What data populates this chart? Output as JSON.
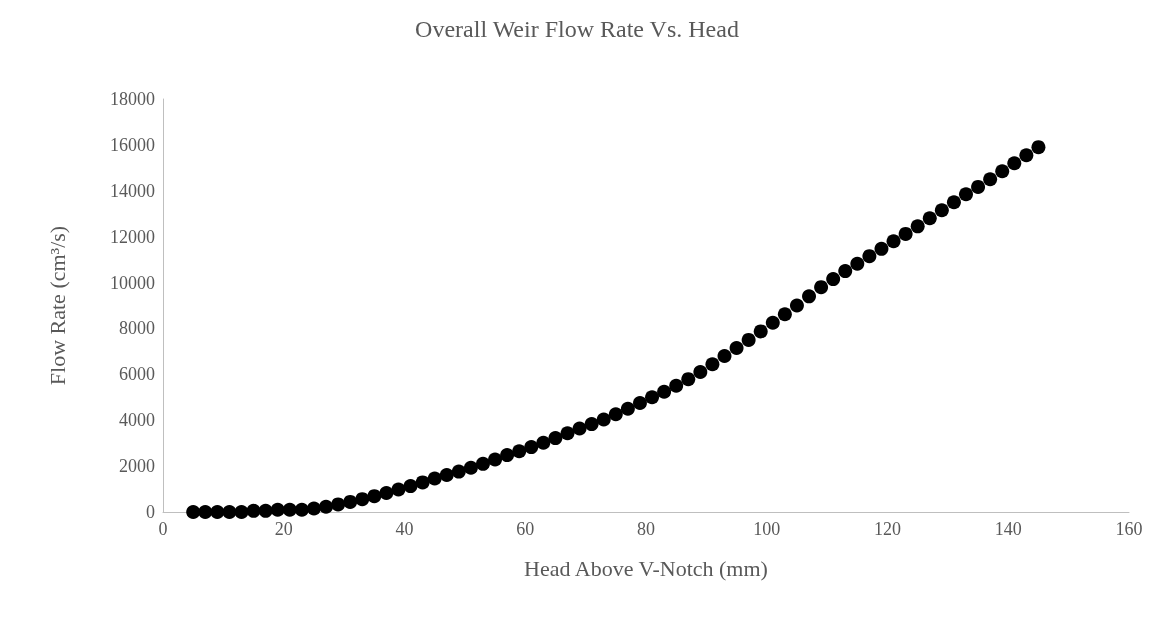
{
  "chart_data": {
    "type": "scatter",
    "title": "Overall Weir Flow Rate Vs. Head",
    "xlabel": "Head Above V-Notch (mm)",
    "ylabel": "Flow Rate (cm³/s)",
    "x": [
      5,
      7,
      9,
      11,
      13,
      15,
      17,
      19,
      21,
      23,
      25,
      27,
      29,
      31,
      33,
      35,
      37,
      39,
      41,
      43,
      45,
      47,
      49,
      51,
      53,
      55,
      57,
      59,
      61,
      63,
      65,
      67,
      69,
      71,
      73,
      75,
      77,
      79,
      81,
      83,
      85,
      87,
      89,
      91,
      93,
      95,
      97,
      99,
      101,
      103,
      105,
      107,
      109,
      111,
      113,
      115,
      117,
      119,
      121,
      123,
      125,
      127,
      129,
      131,
      133,
      135,
      137,
      139,
      141,
      143,
      145
    ],
    "series": [
      {
        "color": "#000000",
        "values": [
          0,
          0,
          0,
          0,
          0,
          50,
          50,
          100,
          100,
          100,
          150,
          230,
          330,
          440,
          560,
          690,
          830,
          980,
          1130,
          1290,
          1460,
          1610,
          1760,
          1930,
          2100,
          2290,
          2480,
          2650,
          2830,
          3020,
          3220,
          3430,
          3640,
          3830,
          4030,
          4260,
          4500,
          4750,
          5000,
          5240,
          5500,
          5790,
          6100,
          6440,
          6800,
          7150,
          7500,
          7870,
          8250,
          8620,
          9000,
          9400,
          9800,
          10150,
          10500,
          10820,
          11150,
          11470,
          11800,
          12120,
          12450,
          12800,
          13150,
          13500,
          13850,
          14170,
          14500,
          14850,
          15200,
          15550,
          15900
        ]
      }
    ],
    "xlim": [
      0,
      160
    ],
    "xticks": [
      0,
      20,
      40,
      60,
      80,
      100,
      120,
      140,
      160
    ],
    "ylim": [
      0,
      18000
    ],
    "yticks": [
      0,
      2000,
      4000,
      6000,
      8000,
      10000,
      12000,
      14000,
      16000,
      18000
    ],
    "grid": false,
    "marker": "circle"
  }
}
